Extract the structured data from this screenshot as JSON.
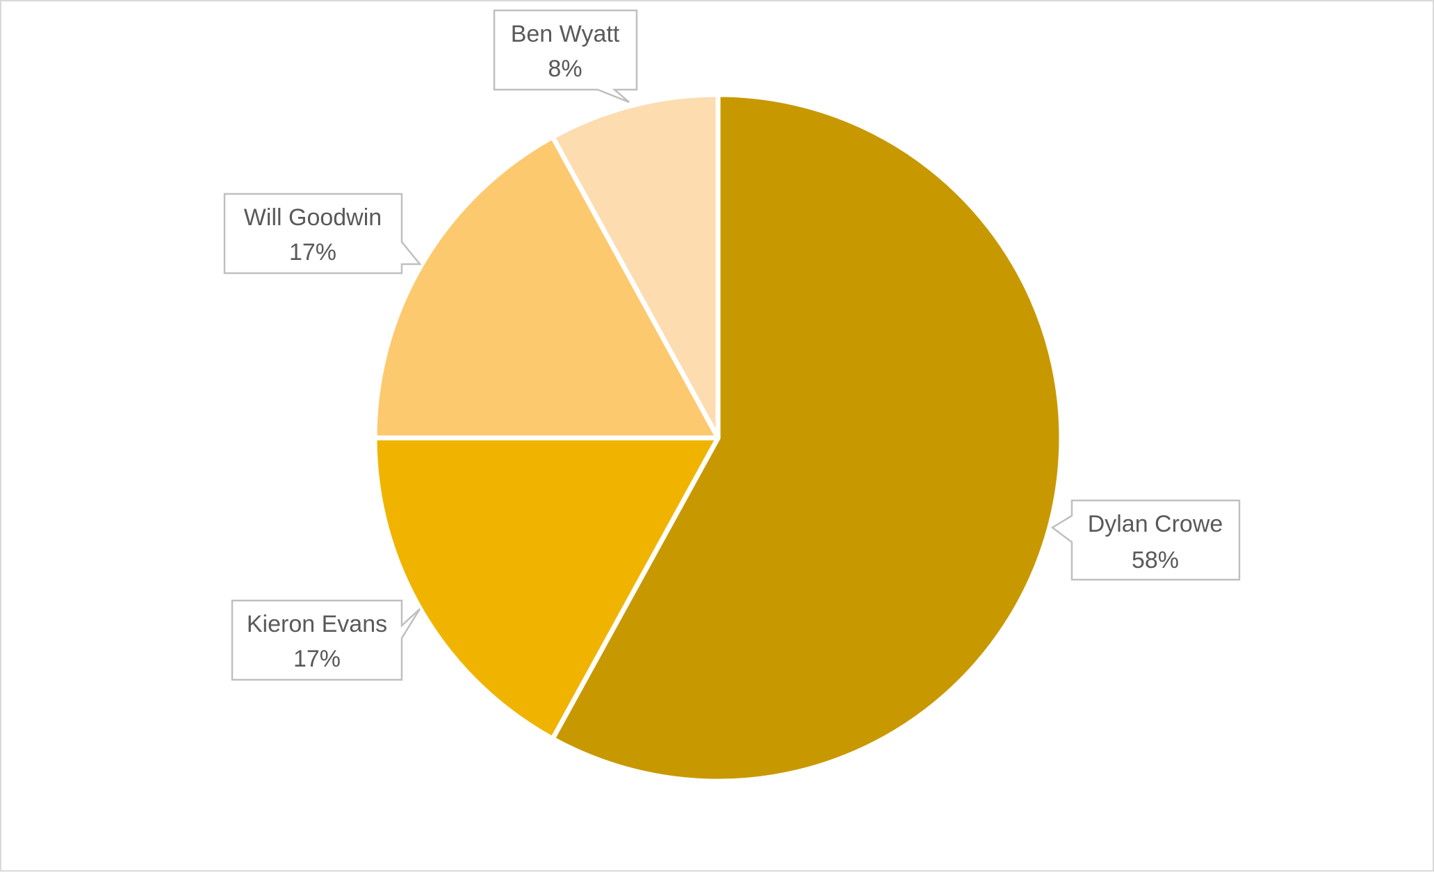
{
  "chart_data": {
    "type": "pie",
    "title": "",
    "start_angle_deg": 0,
    "direction": "clockwise",
    "slices": [
      {
        "label": "Dylan Crowe",
        "value": 58,
        "display": "58%",
        "color": "#c89800"
      },
      {
        "label": "Kieron Evans",
        "value": 17,
        "display": "17%",
        "color": "#f0b400"
      },
      {
        "label": "Will Goodwin",
        "value": 17,
        "display": "17%",
        "color": "#fdc96f"
      },
      {
        "label": "Ben Wyatt",
        "value": 8,
        "display": "8%",
        "color": "#fddcb0"
      }
    ],
    "data_labels": "callouts",
    "legend": "none"
  }
}
